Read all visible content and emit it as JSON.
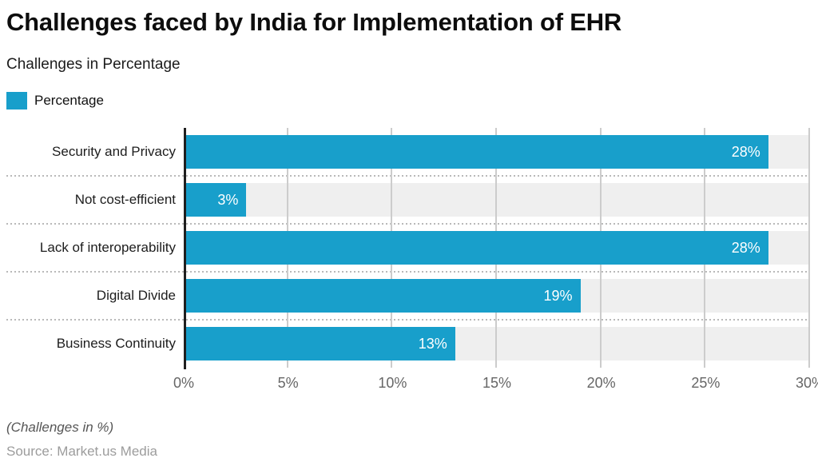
{
  "header": {
    "title": "Challenges faced by India for Implementation of EHR",
    "subtitle": "Challenges in Percentage"
  },
  "legend": {
    "label": "Percentage"
  },
  "chart_data": {
    "type": "bar",
    "orientation": "horizontal",
    "title": "Challenges faced by India for Implementation of EHR",
    "subtitle": "Challenges in Percentage",
    "series_name": "Percentage",
    "categories": [
      "Security and Privacy",
      "Not cost-efficient",
      "Lack of interoperability",
      "Digital Divide",
      "Business Continuity"
    ],
    "values": [
      28,
      3,
      28,
      19,
      13
    ],
    "value_labels": [
      "28%",
      "3%",
      "28%",
      "19%",
      "13%"
    ],
    "xlim": [
      0,
      30
    ],
    "x_tick_values": [
      0,
      5,
      10,
      15,
      20,
      25,
      30
    ],
    "x_tick_labels": [
      "0%",
      "5%",
      "10%",
      "15%",
      "20%",
      "25%",
      "30%"
    ],
    "grid": "vertical",
    "legend_position": "top-left",
    "bar_color": "#189fcb",
    "track_color": "#efefef",
    "gridline_color": "#cccccc"
  },
  "footer": {
    "note": "(Challenges in %)",
    "source": "Source: Market.us Media"
  }
}
